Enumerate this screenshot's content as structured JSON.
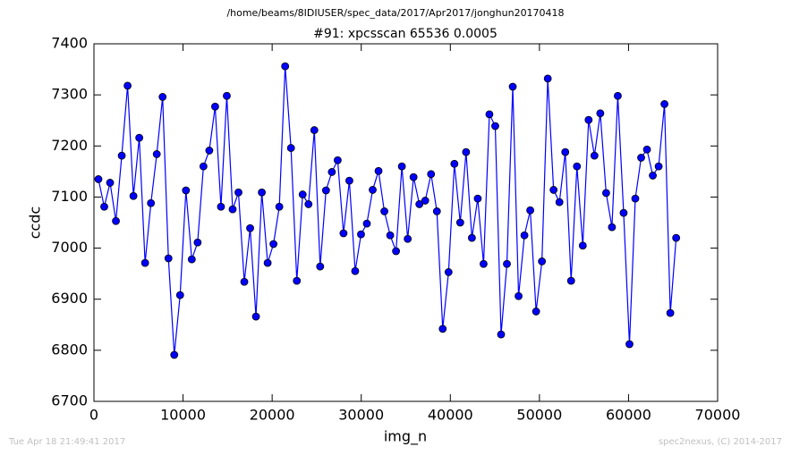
{
  "chart_data": {
    "type": "line",
    "suptitle": "/home/beams/8IDIUSER/spec_data/2017/Apr2017/jonghun20170418",
    "title": "#91: xpcsscan 65536 0.0005",
    "xlabel": "img_n",
    "ylabel": "ccdc",
    "footer_left": "Tue Apr 18 21:49:41 2017",
    "footer_right": "spec2nexus, (C) 2014-2017",
    "xlim": [
      0,
      70000
    ],
    "xticks": [
      0,
      10000,
      20000,
      30000,
      40000,
      50000,
      60000,
      70000
    ],
    "ylim": [
      6700,
      7400
    ],
    "yticks": [
      6700,
      6800,
      6900,
      7000,
      7100,
      7200,
      7300,
      7400
    ],
    "grid": false,
    "x": [
      500,
      1155,
      1810,
      2465,
      3120,
      3775,
      4430,
      5085,
      5740,
      6395,
      7050,
      7705,
      8360,
      9015,
      9670,
      10325,
      10980,
      11635,
      12290,
      12945,
      13600,
      14255,
      14910,
      15565,
      16220,
      16875,
      17530,
      18185,
      18840,
      19495,
      20150,
      20805,
      21460,
      22115,
      22770,
      23425,
      24080,
      24735,
      25390,
      26045,
      26700,
      27355,
      28010,
      28665,
      29320,
      29975,
      30630,
      31285,
      31940,
      32595,
      33250,
      33905,
      34560,
      35215,
      35870,
      36525,
      37180,
      37835,
      38490,
      39145,
      39800,
      40455,
      41110,
      41765,
      42420,
      43075,
      43730,
      44385,
      45040,
      45695,
      46350,
      47005,
      47660,
      48315,
      48970,
      49625,
      50280,
      50935,
      51590,
      52245,
      52900,
      53555,
      54210,
      54865,
      55520,
      56175,
      56830,
      57485,
      58140,
      58795,
      59450,
      60105,
      60760,
      61415,
      62070,
      62725,
      63380,
      64035,
      64690,
      65345
    ],
    "series": [
      {
        "color": "#0000ff",
        "values": [
          7135,
          7081,
          7128,
          7053,
          7181,
          7318,
          7102,
          7216,
          6971,
          7088,
          7184,
          7296,
          6980,
          6791,
          6908,
          7113,
          6978,
          7011,
          7160,
          7191,
          7277,
          7081,
          7298,
          7076,
          7109,
          6934,
          7039,
          6866,
          7109,
          6971,
          7008,
          7081,
          7356,
          7196,
          6936,
          7105,
          7086,
          7231,
          6964,
          7113,
          7149,
          7172,
          7029,
          7132,
          6955,
          7027,
          7048,
          7114,
          7151,
          7072,
          7025,
          6994,
          7160,
          7018,
          7139,
          7086,
          7093,
          7145,
          7072,
          6842,
          6953,
          7165,
          7050,
          7188,
          7020,
          7097,
          6969,
          7262,
          7239,
          6831,
          6969,
          7316,
          6906,
          7025,
          7074,
          6876,
          6974,
          7332,
          7114,
          7090,
          7188,
          6936,
          7160,
          7005,
          7251,
          7181,
          7264,
          7108,
          7041,
          7298,
          7069,
          6812,
          7097,
          7177,
          7193,
          7142,
          7160,
          7282,
          6873,
          7020
        ]
      }
    ]
  }
}
